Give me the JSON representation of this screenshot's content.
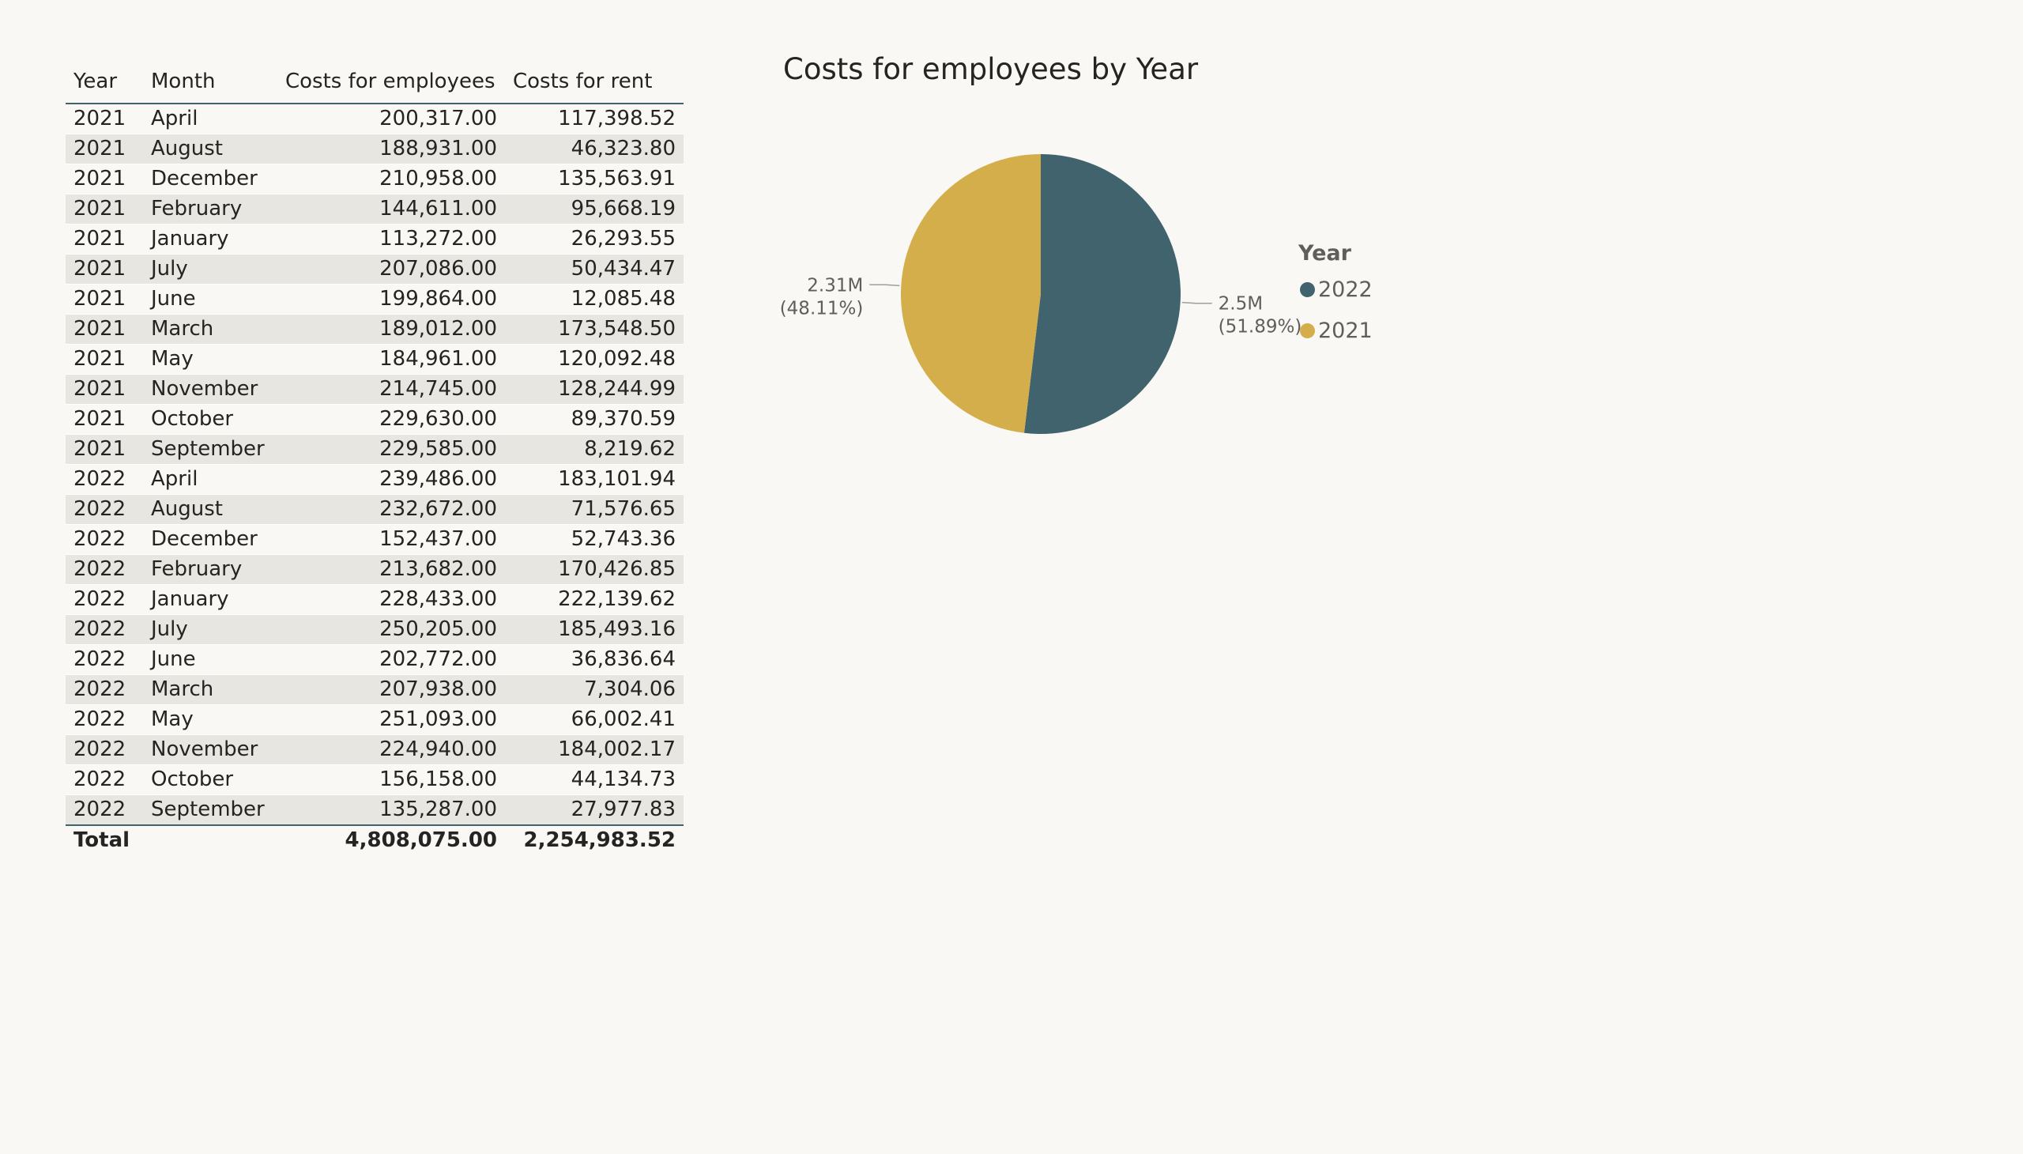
{
  "table": {
    "headers": [
      "Year",
      "Month",
      "Costs for employees",
      "Costs for rent"
    ],
    "rows": [
      [
        "2021",
        "April",
        "200,317.00",
        "117,398.52"
      ],
      [
        "2021",
        "August",
        "188,931.00",
        "46,323.80"
      ],
      [
        "2021",
        "December",
        "210,958.00",
        "135,563.91"
      ],
      [
        "2021",
        "February",
        "144,611.00",
        "95,668.19"
      ],
      [
        "2021",
        "January",
        "113,272.00",
        "26,293.55"
      ],
      [
        "2021",
        "July",
        "207,086.00",
        "50,434.47"
      ],
      [
        "2021",
        "June",
        "199,864.00",
        "12,085.48"
      ],
      [
        "2021",
        "March",
        "189,012.00",
        "173,548.50"
      ],
      [
        "2021",
        "May",
        "184,961.00",
        "120,092.48"
      ],
      [
        "2021",
        "November",
        "214,745.00",
        "128,244.99"
      ],
      [
        "2021",
        "October",
        "229,630.00",
        "89,370.59"
      ],
      [
        "2021",
        "September",
        "229,585.00",
        "8,219.62"
      ],
      [
        "2022",
        "April",
        "239,486.00",
        "183,101.94"
      ],
      [
        "2022",
        "August",
        "232,672.00",
        "71,576.65"
      ],
      [
        "2022",
        "December",
        "152,437.00",
        "52,743.36"
      ],
      [
        "2022",
        "February",
        "213,682.00",
        "170,426.85"
      ],
      [
        "2022",
        "January",
        "228,433.00",
        "222,139.62"
      ],
      [
        "2022",
        "July",
        "250,205.00",
        "185,493.16"
      ],
      [
        "2022",
        "June",
        "202,772.00",
        "36,836.64"
      ],
      [
        "2022",
        "March",
        "207,938.00",
        "7,304.06"
      ],
      [
        "2022",
        "May",
        "251,093.00",
        "66,002.41"
      ],
      [
        "2022",
        "November",
        "224,940.00",
        "184,002.17"
      ],
      [
        "2022",
        "October",
        "156,158.00",
        "44,134.73"
      ],
      [
        "2022",
        "September",
        "135,287.00",
        "27,977.83"
      ]
    ],
    "total": {
      "label": "Total",
      "employees": "4,808,075.00",
      "rent": "2,254,983.52"
    }
  },
  "chart_data": {
    "type": "pie",
    "title": "Costs for employees by Year",
    "legend_title": "Year",
    "legend_position": "right",
    "slices": [
      {
        "name": "2022",
        "value": 2.5,
        "label": "2.5M",
        "percent_label": "(51.89%)",
        "percent": 51.89,
        "color": "#41636d"
      },
      {
        "name": "2021",
        "value": 2.31,
        "label": "2.31M",
        "percent_label": "(48.11%)",
        "percent": 48.11,
        "color": "#d3ae4b"
      }
    ]
  },
  "colors": {
    "background": "#f9f8f4",
    "header_rule": "#41626c",
    "band": "#e8e6e1"
  }
}
